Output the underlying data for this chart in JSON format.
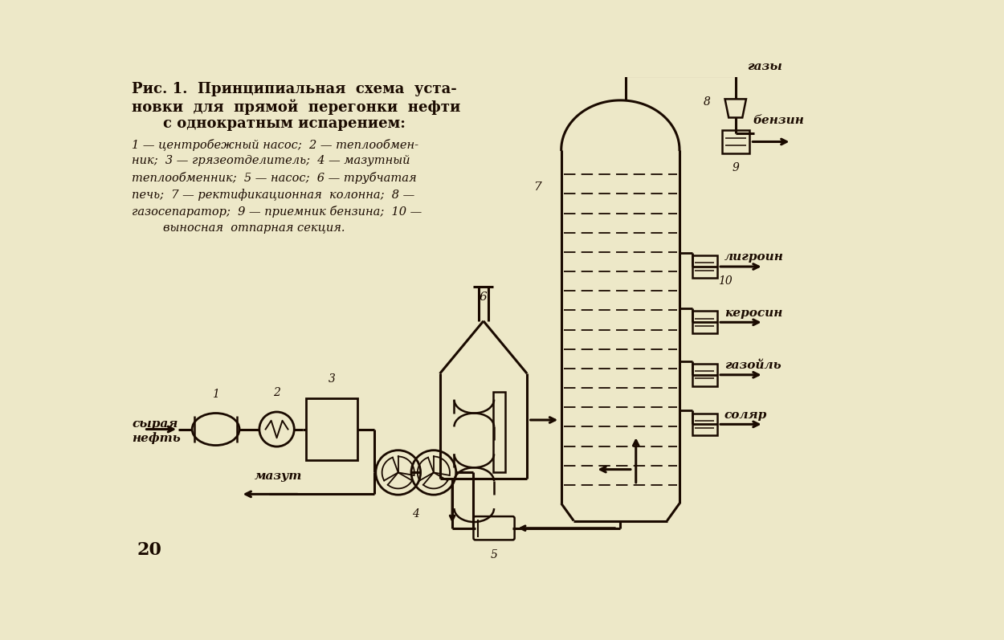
{
  "bg_color": "#ede8c8",
  "line_color": "#1a0a00",
  "title_line1": "Рис. 1.  Принципиальная  схема  уста-",
  "title_line2": "новки  для  прямой  перегонки  нефти",
  "title_line3": "с однократным испарением:",
  "leg1": "1 — центробежный насос;  2 — теплообмен-",
  "leg2": "ник;  3 — грязеотделитель;  4 — мазутный",
  "leg3": "теплообменник;  5 — насос;  6 — трубчатая",
  "leg4": "печь;  7 — ректификационная  колонна;  8 —",
  "leg5": "газосепаратор;  9 — приемник бензина;  10 —",
  "leg6": "выносная  отпарная секция."
}
